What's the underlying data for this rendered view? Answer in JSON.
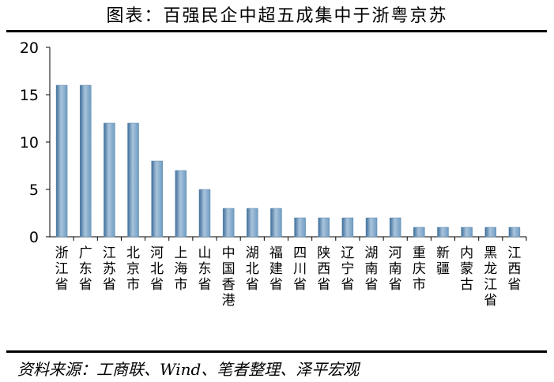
{
  "title": "图表：百强民企中超五成集中于浙粤京苏",
  "source": "资料来源：工商联、Wind、笔者整理、泽平宏观",
  "colors": {
    "bar_light": "#a9c4dc",
    "bar_mid": "#6f9cc3",
    "bar_dark": "#3e6e9a",
    "axis": "#000000"
  },
  "chart_data": {
    "type": "bar",
    "categories": [
      "浙江省",
      "广东省",
      "江苏省",
      "北京市",
      "河北省",
      "上海市",
      "山东省",
      "中国香港",
      "湖北省",
      "福建省",
      "四川省",
      "陕西省",
      "辽宁省",
      "湖南省",
      "河南省",
      "重庆市",
      "新疆",
      "内蒙古",
      "黑龙江省",
      "江西省"
    ],
    "values": [
      16,
      16,
      12,
      12,
      8,
      7,
      5,
      3,
      3,
      3,
      2,
      2,
      2,
      2,
      2,
      1,
      1,
      1,
      1,
      1
    ],
    "yticks": [
      "0",
      "5",
      "10",
      "15",
      "20"
    ],
    "ylim": [
      0,
      20
    ],
    "grid": false,
    "legend": "none"
  }
}
